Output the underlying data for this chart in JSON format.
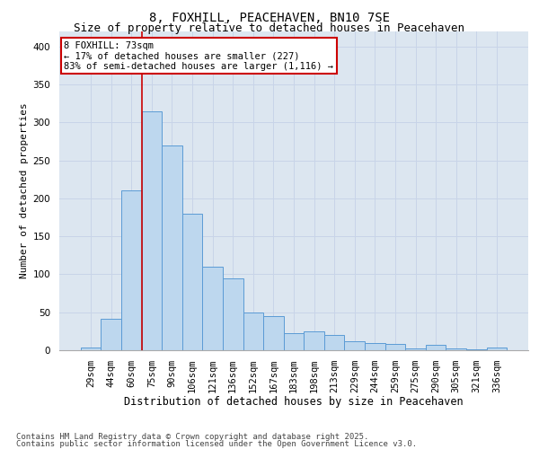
{
  "title1": "8, FOXHILL, PEACEHAVEN, BN10 7SE",
  "title2": "Size of property relative to detached houses in Peacehaven",
  "xlabel": "Distribution of detached houses by size in Peacehaven",
  "ylabel": "Number of detached properties",
  "categories": [
    "29sqm",
    "44sqm",
    "60sqm",
    "75sqm",
    "90sqm",
    "106sqm",
    "121sqm",
    "136sqm",
    "152sqm",
    "167sqm",
    "183sqm",
    "198sqm",
    "213sqm",
    "229sqm",
    "244sqm",
    "259sqm",
    "275sqm",
    "290sqm",
    "305sqm",
    "321sqm",
    "336sqm"
  ],
  "values": [
    3,
    42,
    210,
    315,
    270,
    180,
    110,
    95,
    50,
    45,
    22,
    25,
    20,
    12,
    10,
    8,
    2,
    7,
    2,
    1,
    3
  ],
  "bar_color": "#bdd7ee",
  "bar_edge_color": "#5b9bd5",
  "red_line_color": "#cc0000",
  "red_line_x": 2.5,
  "annotation_title": "8 FOXHILL: 73sqm",
  "annotation_line1": "← 17% of detached houses are smaller (227)",
  "annotation_line2": "83% of semi-detached houses are larger (1,116) →",
  "annotation_box_facecolor": "#ffffff",
  "annotation_box_edgecolor": "#cc0000",
  "ylim": [
    0,
    420
  ],
  "yticks": [
    0,
    50,
    100,
    150,
    200,
    250,
    300,
    350,
    400
  ],
  "grid_color": "#c8d4e8",
  "background_color": "#dce6f0",
  "title1_fontsize": 10,
  "title2_fontsize": 9,
  "xlabel_fontsize": 8.5,
  "ylabel_fontsize": 8,
  "tick_fontsize": 7.5,
  "annotation_fontsize": 7.5,
  "footer_fontsize": 6.5,
  "footer1": "Contains HM Land Registry data © Crown copyright and database right 2025.",
  "footer2": "Contains public sector information licensed under the Open Government Licence v3.0."
}
